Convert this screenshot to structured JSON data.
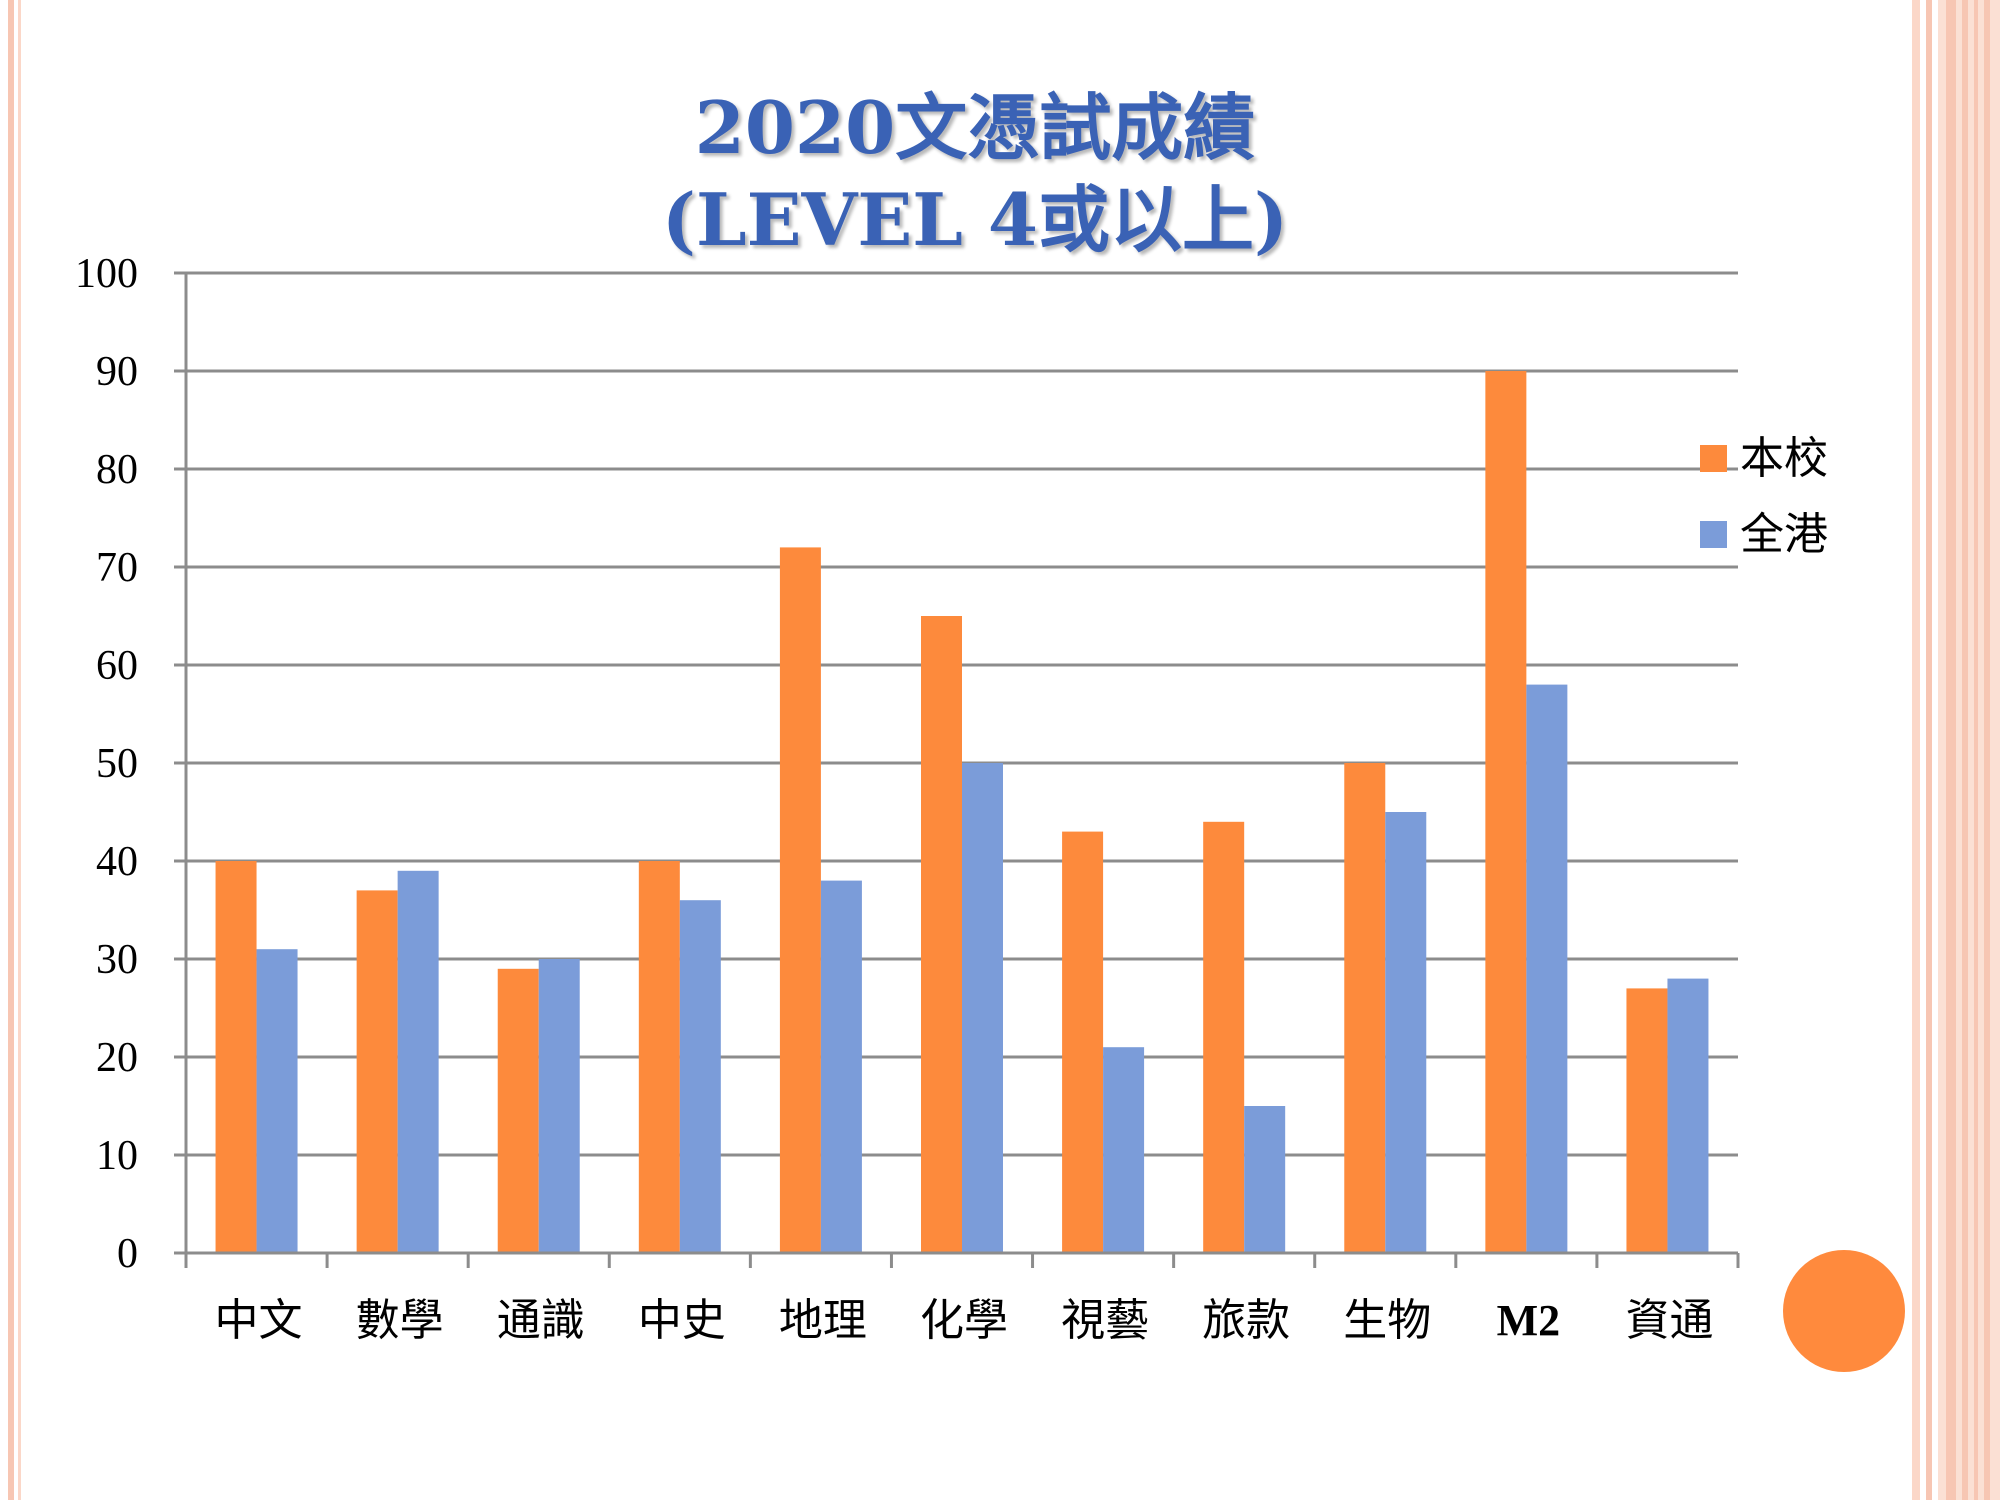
{
  "slide": {
    "frame_colors": {
      "outer": "#f7c6b3",
      "inner": "#fbe0d4",
      "deco_circle": "#ff8a3d"
    }
  },
  "chart_data": {
    "type": "bar",
    "title": "2020文憑試成績",
    "subtitle": "(LEVEL 4或以上)",
    "categories": [
      "中文",
      "數學",
      "通識",
      "中史",
      "地理",
      "化學",
      "視藝",
      "旅款",
      "生物",
      "M2",
      "資通"
    ],
    "series": [
      {
        "name": "本校",
        "color": "#fd8a3c",
        "values": [
          40,
          37,
          29,
          40,
          72,
          65,
          43,
          44,
          50,
          90,
          27
        ]
      },
      {
        "name": "全港",
        "color": "#7b9cd9",
        "values": [
          31,
          39,
          30,
          36,
          38,
          50,
          21,
          15,
          45,
          58,
          28
        ]
      }
    ],
    "ylim": [
      0,
      100
    ],
    "yticks": [
      0,
      10,
      20,
      30,
      40,
      50,
      60,
      70,
      80,
      90,
      100
    ],
    "grid": true,
    "legend_position": "right",
    "xlabel": "",
    "ylabel": ""
  }
}
